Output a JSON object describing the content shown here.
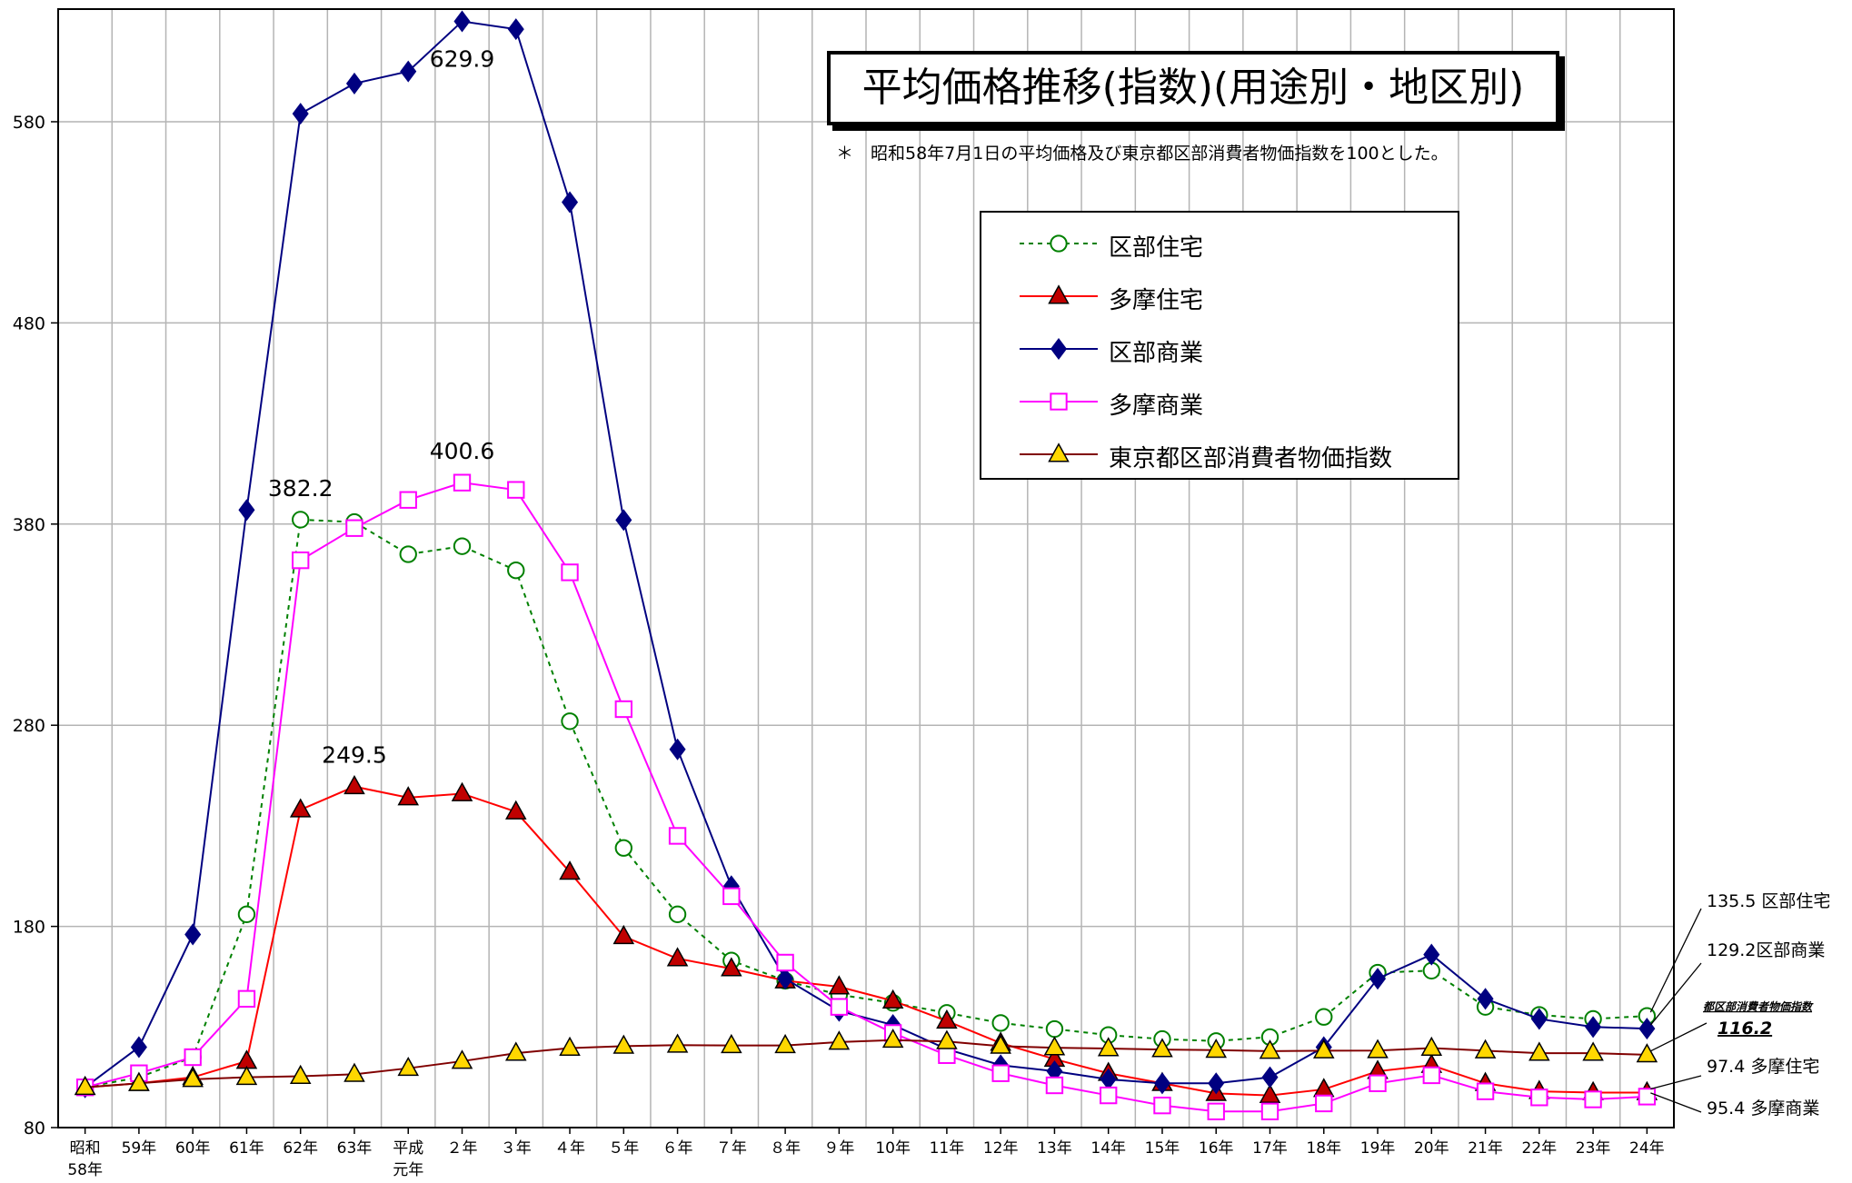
{
  "title": "平均価格推移(指数)(用途別・地区別)",
  "note": "＊　昭和58年7月1日の平均価格及び東京都区部消費者物価指数を100とした。",
  "chart_data": {
    "type": "line",
    "categories": [
      [
        "昭和",
        "58年"
      ],
      [
        "59年"
      ],
      [
        "60年"
      ],
      [
        "61年"
      ],
      [
        "62年"
      ],
      [
        "63年"
      ],
      [
        "平成",
        "元年"
      ],
      [
        "２年"
      ],
      [
        "３年"
      ],
      [
        "４年"
      ],
      [
        "５年"
      ],
      [
        "６年"
      ],
      [
        "７年"
      ],
      [
        "８年"
      ],
      [
        "９年"
      ],
      [
        "10年"
      ],
      [
        "11年"
      ],
      [
        "12年"
      ],
      [
        "13年"
      ],
      [
        "14年"
      ],
      [
        "15年"
      ],
      [
        "16年"
      ],
      [
        "17年"
      ],
      [
        "18年"
      ],
      [
        "19年"
      ],
      [
        "20年"
      ],
      [
        "21年"
      ],
      [
        "22年"
      ],
      [
        "23年"
      ],
      [
        "24年"
      ]
    ],
    "yticks": [
      80,
      180,
      280,
      380,
      480,
      580
    ],
    "ylim": [
      80,
      636
    ],
    "series": [
      {
        "name": "区部住宅",
        "style": "dotted",
        "color": "#008000",
        "marker": "circle",
        "values": [
          100,
          105,
          115,
          186,
          382.2,
          381,
          365,
          369,
          357,
          282,
          219,
          186,
          163,
          153,
          146,
          142,
          137,
          132,
          129,
          126,
          124,
          123,
          125,
          135,
          157,
          158,
          140,
          136,
          134,
          135.5
        ]
      },
      {
        "name": "多摩住宅",
        "style": "solid",
        "color": "#ff0000",
        "marker": "triangle",
        "values": [
          100,
          102,
          105,
          113,
          238,
          249.5,
          244,
          246,
          237,
          207,
          175,
          164,
          159,
          153,
          150,
          143,
          133,
          122,
          114,
          107,
          102,
          97,
          96,
          99,
          108,
          111,
          102,
          98,
          97.4,
          97.4
        ]
      },
      {
        "name": "区部商業",
        "style": "solid",
        "color": "#000080",
        "marker": "diamond",
        "values": [
          100,
          120,
          176,
          387,
          584,
          599,
          605,
          629.9,
          626,
          540,
          382,
          268,
          200,
          154,
          138,
          131,
          119,
          111,
          108,
          104,
          102,
          102,
          105,
          120,
          154,
          166,
          144,
          134,
          130,
          129.2
        ]
      },
      {
        "name": "多摩商業",
        "style": "solid",
        "color": "#ff00ff",
        "marker": "square",
        "values": [
          100,
          107,
          115,
          144,
          362,
          378,
          392,
          400.6,
          397,
          356,
          288,
          225,
          195,
          162,
          140,
          127,
          116,
          107,
          101,
          96,
          91,
          88,
          88,
          92,
          102,
          106,
          98,
          95,
          94,
          95.4
        ]
      },
      {
        "name": "東京都区部消費者物価指数",
        "style": "solid",
        "color": "#800000",
        "marker": "triangle",
        "values": [
          100,
          102,
          104,
          105,
          105.5,
          106.5,
          109.5,
          113,
          117,
          119.5,
          120.5,
          121,
          120.8,
          120.8,
          122.5,
          123.5,
          122.8,
          120.5,
          119.7,
          119.3,
          118.8,
          118.5,
          118,
          118.2,
          118.3,
          119.5,
          118.2,
          117,
          117,
          116.2
        ]
      }
    ],
    "peak_labels": [
      {
        "text": "629.9",
        "series": 2,
        "index": 7
      },
      {
        "text": "400.6",
        "series": 3,
        "index": 7
      },
      {
        "text": "382.2",
        "series": 0,
        "index": 4
      },
      {
        "text": "249.5",
        "series": 1,
        "index": 5
      }
    ],
    "end_labels": [
      {
        "text": "135.5  区部住宅",
        "series": 0
      },
      {
        "text": "129.2区部商業",
        "series": 2
      },
      {
        "text": "都区部消費者物価指数",
        "series": 4,
        "emphasis": "small-bold-underlined"
      },
      {
        "text": "116.2",
        "series": 4,
        "emphasis": "bold-underlined"
      },
      {
        "text": "97.4  多摩住宅",
        "series": 1
      },
      {
        "text": "95.4  多摩商業",
        "series": 3
      }
    ],
    "grid": true,
    "legend_position": "inside-top-right"
  }
}
